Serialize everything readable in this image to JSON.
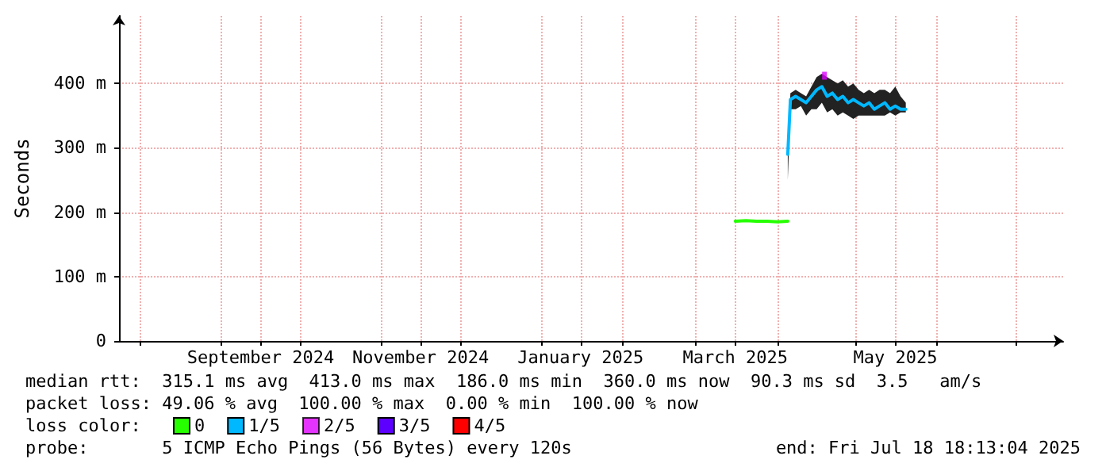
{
  "chart_data": {
    "type": "line",
    "ylabel": "Seconds",
    "legend_title": "loss color:",
    "annotations": [
      "median rtt:  315.1 ms avg  413.0 ms max  186.0 ms min  360.0 ms now  90.3 ms sd  3.5   am/s",
      "packet loss: 49.06 % avg  100.00 % max  0.00 % min  100.00 % now",
      "probe:       5 ICMP Echo Pings (56 Bytes) every 120s",
      "end: Fri Jul 18 18:13:04 2025"
    ],
    "xlim": [
      "2024-07-24",
      "2025-07-19"
    ],
    "xticks": [
      {
        "value": "2024-08-01",
        "label": null
      },
      {
        "value": "2024-09-01",
        "label": null
      },
      {
        "value": "2024-09-16",
        "label": "September 2024"
      },
      {
        "value": "2024-10-01",
        "label": null
      },
      {
        "value": "2024-11-01",
        "label": null
      },
      {
        "value": "2024-11-16",
        "label": "November 2024"
      },
      {
        "value": "2024-12-01",
        "label": null
      },
      {
        "value": "2025-01-01",
        "label": null
      },
      {
        "value": "2025-01-16",
        "label": "January 2025"
      },
      {
        "value": "2025-02-01",
        "label": null
      },
      {
        "value": "2025-03-01",
        "label": null
      },
      {
        "value": "2025-03-16",
        "label": "March 2025"
      },
      {
        "value": "2025-04-01",
        "label": null
      },
      {
        "value": "2025-05-01",
        "label": null
      },
      {
        "value": "2025-05-16",
        "label": "May 2025"
      },
      {
        "value": "2025-06-01",
        "label": null
      },
      {
        "value": "2025-07-01",
        "label": null
      }
    ],
    "ylim": [
      0,
      505
    ],
    "yticks": [
      0,
      {
        "value": 100,
        "label": "100 m"
      },
      {
        "value": 200,
        "label": "200 m"
      },
      {
        "value": 300,
        "label": "300 m"
      },
      {
        "value": 400,
        "label": "400 m"
      }
    ],
    "grid": true,
    "legend": "bottom left",
    "line_style": "solid",
    "series": [
      {
        "name": "0",
        "color": "#26ff00",
        "x": [
          "2025-03-16",
          "2025-03-20",
          "2025-03-24",
          "2025-03-28",
          "2025-04-01",
          "2025-04-05"
        ],
        "values": [
          186,
          187,
          186,
          186,
          185,
          186
        ]
      },
      {
        "name": "1/5",
        "color": "#00b8ff",
        "x": [
          "2025-04-05",
          "2025-04-06",
          "2025-04-08",
          "2025-04-10",
          "2025-04-12",
          "2025-04-14",
          "2025-04-16",
          "2025-04-18",
          "2025-04-20",
          "2025-04-22",
          "2025-04-24",
          "2025-04-26",
          "2025-04-28",
          "2025-04-30",
          "2025-05-02",
          "2025-05-04",
          "2025-05-06",
          "2025-05-08",
          "2025-05-10",
          "2025-05-12",
          "2025-05-14",
          "2025-05-16",
          "2025-05-18",
          "2025-05-20"
        ],
        "values": [
          290,
          375,
          380,
          375,
          370,
          380,
          390,
          395,
          380,
          385,
          375,
          380,
          370,
          375,
          370,
          365,
          370,
          360,
          365,
          370,
          360,
          365,
          360,
          360
        ],
        "lower": [
          250,
          360,
          360,
          365,
          350,
          360,
          360,
          370,
          355,
          360,
          350,
          355,
          350,
          345,
          350,
          350,
          350,
          350,
          350,
          350,
          355,
          350,
          355,
          355
        ],
        "upper": [
          300,
          385,
          390,
          385,
          380,
          395,
          410,
          415,
          410,
          405,
          400,
          405,
          395,
          400,
          390,
          385,
          390,
          385,
          390,
          390,
          385,
          395,
          380,
          370
        ]
      },
      {
        "name": "2/5",
        "type": "scatter",
        "color": "#dd00ff",
        "x": [
          "2025-04-19"
        ],
        "values": [
          412
        ]
      },
      {
        "name": "3/5",
        "color": "#5e00ff"
      },
      {
        "name": "4/5",
        "color": "#ff0000"
      }
    ]
  }
}
